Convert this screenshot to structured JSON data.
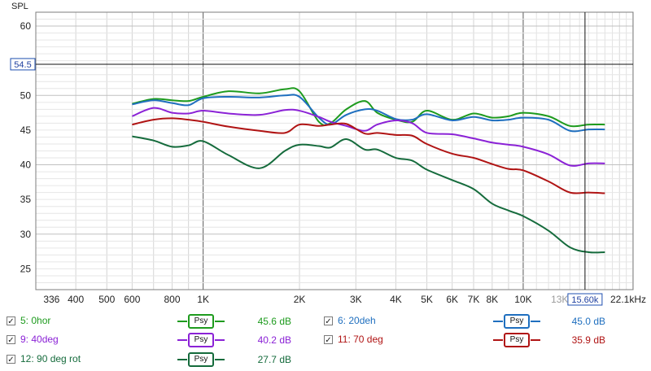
{
  "chart_data": {
    "type": "line",
    "ylabel": "SPL",
    "xlabel": "",
    "x_scale": "log",
    "xlim": [
      300,
      22050
    ],
    "ylim": [
      22,
      62
    ],
    "y_ticks": [
      25,
      30,
      35,
      40,
      45,
      50,
      55,
      60
    ],
    "y_tick_labels": [
      "25",
      "30",
      "35",
      "40",
      "45",
      "50",
      "",
      "60"
    ],
    "x_ticks": [
      336,
      400,
      500,
      600,
      800,
      1000,
      2000,
      3000,
      4000,
      5000,
      6000,
      7000,
      8000,
      10000,
      13000,
      22050
    ],
    "x_tick_labels": [
      "336",
      "400",
      "500",
      "600",
      "800",
      "1K",
      "2K",
      "3K",
      "4K",
      "5K",
      "6K",
      "7K",
      "8K",
      "10K",
      "13K",
      "22.1kHz"
    ],
    "cursor": {
      "x": 15600,
      "y": 54.5,
      "x_label": "15.60k",
      "y_label": "54.5"
    },
    "grid": true,
    "series": [
      {
        "name": "5: 0hor",
        "color": "#1e9b1e",
        "value_label": "45.6 dB",
        "x": [
          600,
          700,
          800,
          900,
          1000,
          1200,
          1500,
          1800,
          2000,
          2300,
          2500,
          2800,
          3200,
          3500,
          4000,
          4500,
          5000,
          6000,
          7000,
          8000,
          9000,
          10000,
          12000,
          14000,
          16000,
          18000
        ],
        "y": [
          48.8,
          49.5,
          49.3,
          49.2,
          49.8,
          50.6,
          50.3,
          50.9,
          50.6,
          46.2,
          46.0,
          48.0,
          49.2,
          47.5,
          46.5,
          46.2,
          47.8,
          46.5,
          47.4,
          46.8,
          47.0,
          47.5,
          47.0,
          45.6,
          45.8,
          45.8
        ]
      },
      {
        "name": "6: 20deh",
        "color": "#1f6fbf",
        "value_label": "45.0 dB",
        "x": [
          600,
          700,
          800,
          900,
          1000,
          1200,
          1500,
          1800,
          2000,
          2300,
          2500,
          2800,
          3200,
          3500,
          4000,
          4500,
          5000,
          6000,
          7000,
          8000,
          9000,
          10000,
          12000,
          14000,
          16000,
          18000
        ],
        "y": [
          48.7,
          49.3,
          48.9,
          48.6,
          49.6,
          49.8,
          49.7,
          50.0,
          49.8,
          46.8,
          45.8,
          47.2,
          48.0,
          47.8,
          46.6,
          46.5,
          47.3,
          46.4,
          46.9,
          46.4,
          46.5,
          46.8,
          46.5,
          44.9,
          45.1,
          45.1
        ]
      },
      {
        "name": "9: 40deg",
        "color": "#8b22d6",
        "value_label": "40.2 dB",
        "x": [
          600,
          700,
          800,
          900,
          1000,
          1200,
          1500,
          1800,
          2000,
          2300,
          2500,
          2800,
          3200,
          3500,
          4000,
          4500,
          5000,
          6000,
          7000,
          8000,
          9000,
          10000,
          12000,
          14000,
          16000,
          18000
        ],
        "y": [
          47.0,
          48.2,
          47.5,
          47.4,
          47.8,
          47.4,
          47.2,
          47.9,
          47.8,
          46.9,
          46.2,
          45.6,
          44.9,
          45.8,
          46.4,
          46.0,
          44.6,
          44.4,
          43.8,
          43.2,
          42.9,
          42.6,
          41.5,
          39.9,
          40.2,
          40.2
        ]
      },
      {
        "name": "11: 70 deg",
        "color": "#b01414",
        "value_label": "35.9 dB",
        "x": [
          600,
          700,
          800,
          900,
          1000,
          1200,
          1500,
          1800,
          2000,
          2300,
          2500,
          2800,
          3200,
          3500,
          4000,
          4500,
          5000,
          6000,
          7000,
          8000,
          9000,
          10000,
          12000,
          14000,
          16000,
          18000
        ],
        "y": [
          45.8,
          46.5,
          46.7,
          46.5,
          46.2,
          45.5,
          44.9,
          44.6,
          45.8,
          45.6,
          45.8,
          45.9,
          44.5,
          44.6,
          44.3,
          44.2,
          43.0,
          41.6,
          41.0,
          40.1,
          39.4,
          39.2,
          37.6,
          36.0,
          36.0,
          35.9
        ]
      },
      {
        "name": "12: 90 deg rot",
        "color": "#156b3c",
        "value_label": "27.7 dB",
        "x": [
          600,
          700,
          800,
          900,
          1000,
          1200,
          1500,
          1800,
          2000,
          2300,
          2500,
          2800,
          3200,
          3500,
          4000,
          4500,
          5000,
          6000,
          7000,
          8000,
          9000,
          10000,
          12000,
          14000,
          16000,
          18000
        ],
        "y": [
          44.1,
          43.5,
          42.6,
          42.8,
          43.4,
          41.4,
          39.5,
          42.0,
          42.9,
          42.7,
          42.5,
          43.7,
          42.2,
          42.2,
          41.0,
          40.6,
          39.3,
          37.8,
          36.5,
          34.4,
          33.4,
          32.6,
          30.5,
          28.1,
          27.4,
          27.4
        ]
      }
    ]
  },
  "legend": {
    "psy_label": "Psy",
    "check_mark": "✓"
  }
}
